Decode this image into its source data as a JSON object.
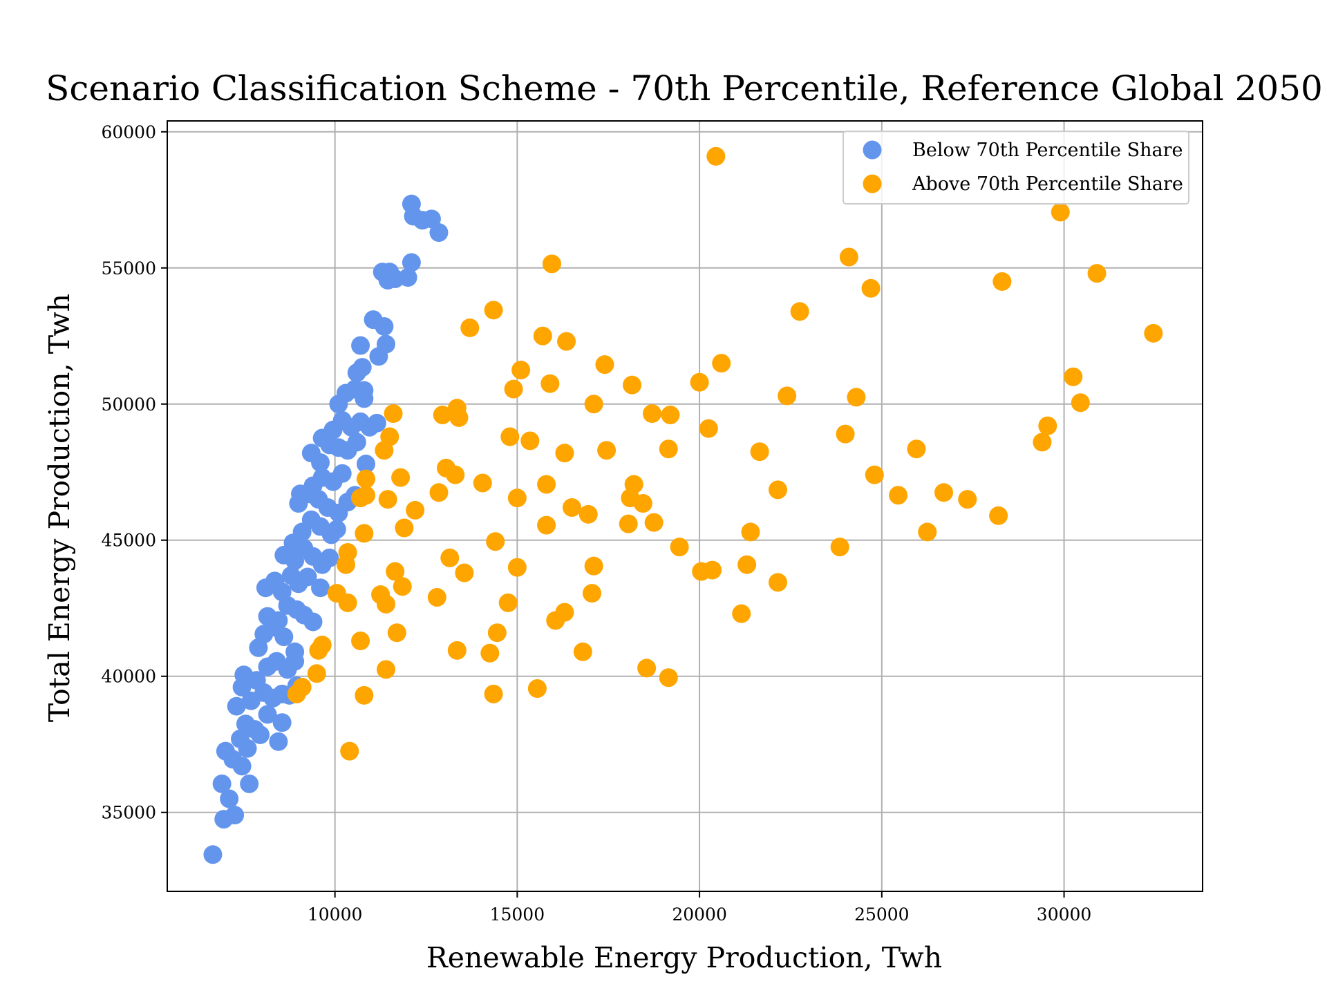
{
  "chart_data": {
    "type": "scatter",
    "title": "Scenario Classification Scheme - 70th Percentile, Reference Global 2050",
    "xlabel": "Renewable Energy Production, Twh",
    "ylabel": "Total Energy Production, Twh",
    "xlim": [
      5400,
      33800
    ],
    "ylim": [
      32100,
      60400
    ],
    "xticks": [
      10000,
      15000,
      20000,
      25000,
      30000
    ],
    "yticks": [
      35000,
      40000,
      45000,
      50000,
      55000,
      60000
    ],
    "xtick_labels": [
      "10000",
      "15000",
      "20000",
      "25000",
      "30000"
    ],
    "ytick_labels": [
      "35000",
      "40000",
      "45000",
      "50000",
      "55000",
      "60000"
    ],
    "grid": true,
    "legend_position": "top-right",
    "series": [
      {
        "name": "Below 70th Percentile Share",
        "color": "#6495ED",
        "points": [
          [
            6650,
            33450
          ],
          [
            6950,
            34750
          ],
          [
            6900,
            36050
          ],
          [
            7100,
            35500
          ],
          [
            7250,
            34900
          ],
          [
            7000,
            37250
          ],
          [
            7200,
            36950
          ],
          [
            7450,
            36700
          ],
          [
            7650,
            36050
          ],
          [
            7400,
            37700
          ],
          [
            7600,
            37350
          ],
          [
            7300,
            38900
          ],
          [
            7550,
            38250
          ],
          [
            7800,
            38050
          ],
          [
            7950,
            37850
          ],
          [
            8150,
            38600
          ],
          [
            8450,
            37600
          ],
          [
            8550,
            38300
          ],
          [
            7450,
            39600
          ],
          [
            7700,
            39100
          ],
          [
            7500,
            40050
          ],
          [
            7850,
            39850
          ],
          [
            8050,
            39400
          ],
          [
            8300,
            39200
          ],
          [
            8550,
            39350
          ],
          [
            8750,
            39300
          ],
          [
            8950,
            39650
          ],
          [
            7900,
            41050
          ],
          [
            8150,
            40350
          ],
          [
            8400,
            40550
          ],
          [
            8700,
            40250
          ],
          [
            8900,
            40550
          ],
          [
            8050,
            41550
          ],
          [
            8350,
            41800
          ],
          [
            8600,
            41450
          ],
          [
            8900,
            40900
          ],
          [
            8150,
            42200
          ],
          [
            8450,
            42050
          ],
          [
            8700,
            42600
          ],
          [
            8950,
            42450
          ],
          [
            9150,
            42250
          ],
          [
            9400,
            42000
          ],
          [
            8100,
            43250
          ],
          [
            8350,
            43500
          ],
          [
            8550,
            43100
          ],
          [
            8800,
            43700
          ],
          [
            9000,
            43400
          ],
          [
            9250,
            43650
          ],
          [
            9600,
            43250
          ],
          [
            8600,
            44450
          ],
          [
            8900,
            44250
          ],
          [
            9150,
            44700
          ],
          [
            9400,
            44400
          ],
          [
            9650,
            44100
          ],
          [
            9850,
            44350
          ],
          [
            8850,
            44900
          ],
          [
            9100,
            45300
          ],
          [
            9350,
            45750
          ],
          [
            9600,
            45500
          ],
          [
            9900,
            45200
          ],
          [
            10050,
            45400
          ],
          [
            9000,
            46350
          ],
          [
            9300,
            46700
          ],
          [
            9550,
            46500
          ],
          [
            9800,
            46200
          ],
          [
            10100,
            46000
          ],
          [
            10350,
            46400
          ],
          [
            10550,
            46650
          ],
          [
            9050,
            46700
          ],
          [
            9400,
            47000
          ],
          [
            9650,
            47300
          ],
          [
            9950,
            47150
          ],
          [
            10200,
            47450
          ],
          [
            9350,
            48200
          ],
          [
            9600,
            47850
          ],
          [
            9850,
            48500
          ],
          [
            10100,
            48400
          ],
          [
            10350,
            48300
          ],
          [
            10600,
            48600
          ],
          [
            10850,
            47800
          ],
          [
            9650,
            48750
          ],
          [
            9950,
            49050
          ],
          [
            10200,
            49400
          ],
          [
            10450,
            49150
          ],
          [
            10700,
            49350
          ],
          [
            10950,
            49150
          ],
          [
            11150,
            49300
          ],
          [
            10100,
            50000
          ],
          [
            10300,
            50400
          ],
          [
            10550,
            50550
          ],
          [
            10800,
            50500
          ],
          [
            10800,
            50200
          ],
          [
            10600,
            51150
          ],
          [
            10750,
            51350
          ],
          [
            10700,
            52150
          ],
          [
            11050,
            53100
          ],
          [
            11200,
            51750
          ],
          [
            11400,
            52200
          ],
          [
            11350,
            52850
          ],
          [
            11300,
            54850
          ],
          [
            11500,
            54850
          ],
          [
            11450,
            54550
          ],
          [
            11650,
            54600
          ],
          [
            12000,
            54650
          ],
          [
            12100,
            55200
          ],
          [
            12100,
            57350
          ],
          [
            12150,
            56900
          ],
          [
            12400,
            56750
          ],
          [
            12650,
            56800
          ],
          [
            12850,
            56300
          ]
        ]
      },
      {
        "name": "Above 70th Percentile Share",
        "color": "#FFA500",
        "points": [
          [
            8950,
            39350
          ],
          [
            9100,
            39600
          ],
          [
            9500,
            40100
          ],
          [
            9550,
            40950
          ],
          [
            9650,
            41150
          ],
          [
            10050,
            43050
          ],
          [
            10350,
            42700
          ],
          [
            10300,
            44100
          ],
          [
            10350,
            44550
          ],
          [
            10400,
            37250
          ],
          [
            10700,
            41300
          ],
          [
            10800,
            39300
          ],
          [
            10800,
            45250
          ],
          [
            10700,
            46550
          ],
          [
            10850,
            46650
          ],
          [
            10850,
            47250
          ],
          [
            11250,
            43000
          ],
          [
            11400,
            42650
          ],
          [
            11400,
            40250
          ],
          [
            11450,
            46500
          ],
          [
            11350,
            48300
          ],
          [
            11500,
            48800
          ],
          [
            11600,
            49650
          ],
          [
            11650,
            43850
          ],
          [
            11700,
            41600
          ],
          [
            11800,
            47300
          ],
          [
            11850,
            43300
          ],
          [
            11900,
            45450
          ],
          [
            12200,
            46100
          ],
          [
            12800,
            42900
          ],
          [
            12850,
            46750
          ],
          [
            12950,
            49600
          ],
          [
            13050,
            47650
          ],
          [
            13150,
            44350
          ],
          [
            13300,
            47400
          ],
          [
            13350,
            40950
          ],
          [
            13350,
            49850
          ],
          [
            13400,
            49500
          ],
          [
            13550,
            43800
          ],
          [
            13700,
            52800
          ],
          [
            14050,
            47100
          ],
          [
            14250,
            40850
          ],
          [
            14350,
            39350
          ],
          [
            14350,
            53450
          ],
          [
            14400,
            44950
          ],
          [
            14450,
            41600
          ],
          [
            14750,
            42700
          ],
          [
            14800,
            48800
          ],
          [
            14900,
            50550
          ],
          [
            15000,
            46550
          ],
          [
            15000,
            44000
          ],
          [
            15100,
            51250
          ],
          [
            15350,
            48650
          ],
          [
            15550,
            39550
          ],
          [
            15700,
            52500
          ],
          [
            15800,
            47050
          ],
          [
            15800,
            45550
          ],
          [
            15900,
            50750
          ],
          [
            15950,
            55150
          ],
          [
            16050,
            42050
          ],
          [
            16300,
            42350
          ],
          [
            16300,
            48200
          ],
          [
            16350,
            52300
          ],
          [
            16500,
            46200
          ],
          [
            16800,
            40900
          ],
          [
            16950,
            45950
          ],
          [
            17050,
            43050
          ],
          [
            17100,
            50000
          ],
          [
            17100,
            44050
          ],
          [
            17400,
            51450
          ],
          [
            17450,
            48300
          ],
          [
            18050,
            45600
          ],
          [
            18100,
            46550
          ],
          [
            18150,
            50700
          ],
          [
            18200,
            47050
          ],
          [
            18450,
            46350
          ],
          [
            18550,
            40300
          ],
          [
            18700,
            49650
          ],
          [
            18750,
            45650
          ],
          [
            19150,
            39950
          ],
          [
            19150,
            48350
          ],
          [
            19200,
            49600
          ],
          [
            19450,
            44750
          ],
          [
            20000,
            50800
          ],
          [
            20050,
            43850
          ],
          [
            20250,
            49100
          ],
          [
            20350,
            43900
          ],
          [
            20450,
            59100
          ],
          [
            20600,
            51500
          ],
          [
            21150,
            42300
          ],
          [
            21300,
            44100
          ],
          [
            21400,
            45300
          ],
          [
            21650,
            48250
          ],
          [
            22150,
            46850
          ],
          [
            22150,
            43450
          ],
          [
            22400,
            50300
          ],
          [
            22750,
            53400
          ],
          [
            23850,
            44750
          ],
          [
            24000,
            48900
          ],
          [
            24100,
            55400
          ],
          [
            24300,
            50250
          ],
          [
            24700,
            54250
          ],
          [
            24800,
            47400
          ],
          [
            25450,
            46650
          ],
          [
            25950,
            48350
          ],
          [
            26250,
            45300
          ],
          [
            26700,
            46750
          ],
          [
            27350,
            46500
          ],
          [
            28200,
            45900
          ],
          [
            28300,
            54500
          ],
          [
            29400,
            48600
          ],
          [
            29550,
            49200
          ],
          [
            29900,
            57050
          ],
          [
            30250,
            51000
          ],
          [
            30450,
            50050
          ],
          [
            30900,
            54800
          ],
          [
            32450,
            52600
          ]
        ]
      }
    ]
  }
}
